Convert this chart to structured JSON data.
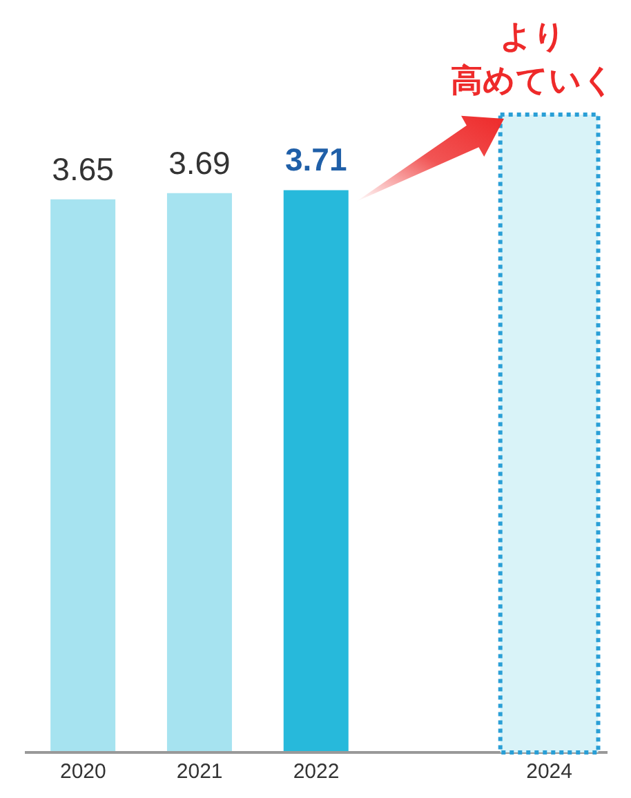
{
  "chart_data": {
    "type": "bar",
    "categories": [
      "2020",
      "2021",
      "2022",
      null,
      "2024"
    ],
    "values": [
      3.65,
      3.69,
      3.71,
      null,
      null
    ],
    "colors": [
      "#a6e3f0",
      "#a6e3f0",
      "#27b9db",
      null,
      null
    ],
    "data_labels": true,
    "bands": [
      {
        "axis": "x",
        "from": "2024",
        "to": "2024",
        "color": "#d9f3f8"
      }
    ],
    "annotations": [
      "より",
      "高めていく"
    ]
  }
}
